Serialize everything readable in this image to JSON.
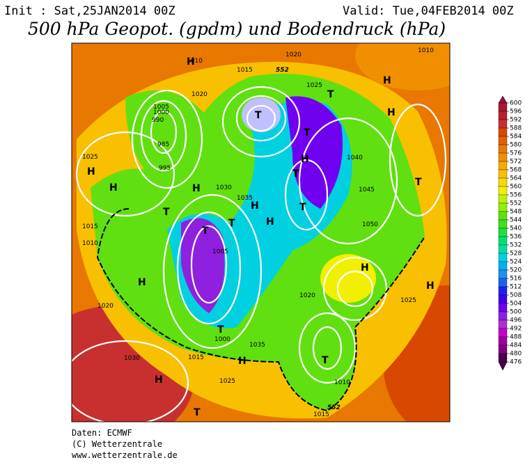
{
  "header": {
    "init": "Init : Sat,25JAN2014 00Z",
    "valid": "Valid: Tue,04FEB2014 00Z",
    "title": "500 hPa Geopot. (gpdm) und Bodendruck (hPa)"
  },
  "map": {
    "labels": [
      "1010",
      "1015",
      "1020",
      "1025",
      "1005",
      "1000",
      "990",
      "985",
      "995",
      "1030",
      "1035",
      "1040",
      "1045",
      "1050",
      "1020",
      "1025",
      "1015",
      "1010",
      "1005",
      "1000",
      "1020",
      "1030",
      "1025",
      "1015",
      "1010",
      "1035",
      "1020",
      "1025",
      "1010",
      "1015",
      "552",
      "552"
    ],
    "symbols": [
      "H",
      "H",
      "H",
      "H",
      "H",
      "H",
      "H",
      "H",
      "H",
      "H",
      "H",
      "H",
      "H",
      "H",
      "T",
      "T",
      "T",
      "T",
      "T",
      "T",
      "T",
      "T",
      "T",
      "T",
      "T",
      "T"
    ]
  },
  "colorbar": {
    "levels": [
      600,
      596,
      592,
      588,
      584,
      580,
      576,
      572,
      568,
      564,
      560,
      556,
      552,
      548,
      544,
      540,
      536,
      532,
      528,
      524,
      520,
      516,
      512,
      508,
      504,
      500,
      496,
      492,
      488,
      484,
      480,
      476
    ],
    "colors": [
      "#981040",
      "#a81830",
      "#b82030",
      "#c83030",
      "#d84800",
      "#e06000",
      "#e87800",
      "#f09000",
      "#f8a800",
      "#f8c000",
      "#f8d800",
      "#f0f000",
      "#c0f000",
      "#90f000",
      "#60e010",
      "#40e020",
      "#20e040",
      "#00e070",
      "#00e0a0",
      "#00d0e0",
      "#00b0f0",
      "#2090f0",
      "#2060f0",
      "#2020f0",
      "#4000f0",
      "#7000f0",
      "#9020e0",
      "#b030d0",
      "#c800c8",
      "#a000a0",
      "#800080",
      "#4b0050"
    ]
  },
  "footer": [
    "Daten: ECMWF",
    "(C) Wetterzentrale",
    "www.wetterzentrale.de"
  ]
}
